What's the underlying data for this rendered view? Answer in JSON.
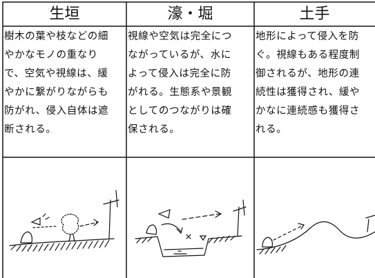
{
  "table": {
    "header": [
      "生垣",
      "濠・堀",
      "土手"
    ],
    "rows": [
      [
        [
          "樹木の葉や枝などの細",
          "やかなモノの重なり",
          "で、空気や視線は、緩",
          "やかに繋がりながらも",
          "防がれ、侵入自体は遮",
          "断される。"
        ],
        [
          "視線や空気は完全につ",
          "ながっているが、水に",
          "よって侵入は完全に防",
          "がれる。生態系や景観",
          "としてのつながりは確",
          "保される。"
        ],
        [
          "地形によって侵入を防",
          "ぐ。視線もある程度制",
          "御されるが、地形の連",
          "続性は獲得され、緩や",
          "かなに連続感も獲得さ",
          "れる。"
        ]
      ]
    ]
  }
}
